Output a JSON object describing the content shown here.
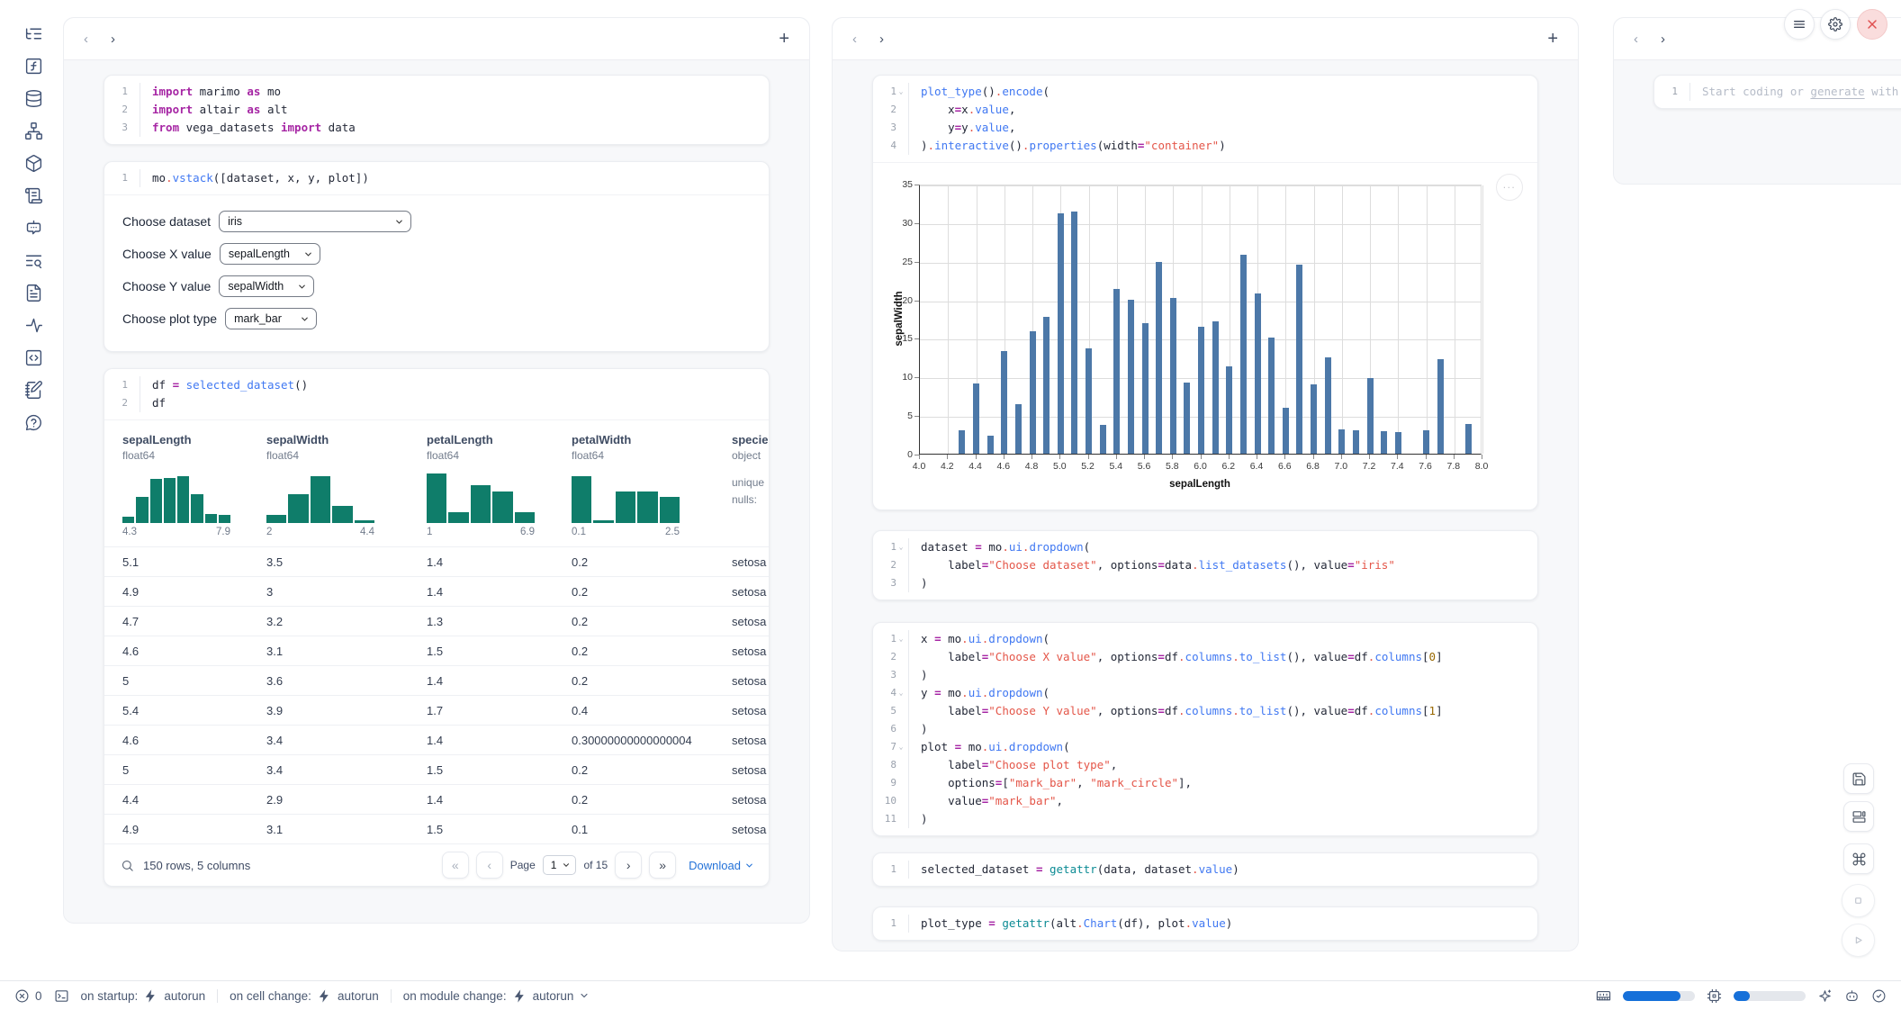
{
  "left_rail": {
    "icons": [
      "file-tree-icon",
      "function-square-icon",
      "database-icon",
      "dependency-graph-icon",
      "package-icon",
      "scroll-log-icon",
      "bot-chat-icon",
      "list-search-icon",
      "document-icon",
      "activity-icon",
      "code-snippet-icon",
      "scratchpad-icon",
      "help-icon"
    ]
  },
  "code": {
    "import_cell": {
      "lines": [
        {
          "n": "1",
          "t": [
            [
              "kw",
              "import"
            ],
            [
              "pl",
              " marimo "
            ],
            [
              "kw",
              "as"
            ],
            [
              "pl",
              " mo"
            ]
          ]
        },
        {
          "n": "2",
          "t": [
            [
              "kw",
              "import"
            ],
            [
              "pl",
              " altair "
            ],
            [
              "kw",
              "as"
            ],
            [
              "pl",
              " alt"
            ]
          ]
        },
        {
          "n": "3",
          "t": [
            [
              "kw",
              "from"
            ],
            [
              "pl",
              " vega_datasets "
            ],
            [
              "kw",
              "import"
            ],
            [
              "pl",
              " data"
            ]
          ]
        }
      ]
    },
    "vstack_cell": {
      "lines": [
        {
          "n": "1",
          "t": [
            [
              "pl",
              "mo"
            ],
            [
              "dot",
              "."
            ],
            [
              "fn",
              "vstack"
            ],
            [
              "pl",
              "([dataset, x, y, plot])"
            ]
          ]
        }
      ]
    },
    "df_cell": {
      "lines": [
        {
          "n": "1",
          "t": [
            [
              "pl",
              "df "
            ],
            [
              "op",
              "="
            ],
            [
              "pl",
              " "
            ],
            [
              "fn",
              "selected_dataset"
            ],
            [
              "pl",
              "()"
            ]
          ]
        },
        {
          "n": "2",
          "t": [
            [
              "pl",
              "df"
            ]
          ]
        }
      ]
    },
    "plot_cell": {
      "lines": [
        {
          "n": "1",
          "fold": true,
          "t": [
            [
              "fn",
              "plot_type"
            ],
            [
              "pl",
              "()"
            ],
            [
              "dot",
              "."
            ],
            [
              "fn",
              "encode"
            ],
            [
              "pl",
              "("
            ]
          ]
        },
        {
          "n": "2",
          "t": [
            [
              "pl",
              "    x"
            ],
            [
              "op",
              "="
            ],
            [
              "pl",
              "x"
            ],
            [
              "dot",
              "."
            ],
            [
              "fn",
              "value"
            ],
            [
              "pl",
              ","
            ]
          ]
        },
        {
          "n": "3",
          "t": [
            [
              "pl",
              "    y"
            ],
            [
              "op",
              "="
            ],
            [
              "pl",
              "y"
            ],
            [
              "dot",
              "."
            ],
            [
              "fn",
              "value"
            ],
            [
              "pl",
              ","
            ]
          ]
        },
        {
          "n": "4",
          "t": [
            [
              "pl",
              ")"
            ],
            [
              "dot",
              "."
            ],
            [
              "fn",
              "interactive"
            ],
            [
              "pl",
              "()"
            ],
            [
              "dot",
              "."
            ],
            [
              "fn",
              "properties"
            ],
            [
              "pl",
              "(width"
            ],
            [
              "op",
              "="
            ],
            [
              "str",
              "\"container\""
            ],
            [
              "pl",
              ")"
            ]
          ]
        }
      ]
    },
    "dataset_cell": {
      "lines": [
        {
          "n": "1",
          "fold": true,
          "t": [
            [
              "pl",
              "dataset "
            ],
            [
              "op",
              "="
            ],
            [
              "pl",
              " mo"
            ],
            [
              "dot",
              "."
            ],
            [
              "fn",
              "ui"
            ],
            [
              "dot",
              "."
            ],
            [
              "fn",
              "dropdown"
            ],
            [
              "pl",
              "("
            ]
          ]
        },
        {
          "n": "2",
          "t": [
            [
              "pl",
              "    label"
            ],
            [
              "op",
              "="
            ],
            [
              "str",
              "\"Choose dataset\""
            ],
            [
              "pl",
              ", options"
            ],
            [
              "op",
              "="
            ],
            [
              "pl",
              "data"
            ],
            [
              "dot",
              "."
            ],
            [
              "fn",
              "list_datasets"
            ],
            [
              "pl",
              "(), value"
            ],
            [
              "op",
              "="
            ],
            [
              "str",
              "\"iris\""
            ]
          ]
        },
        {
          "n": "3",
          "t": [
            [
              "pl",
              ")"
            ]
          ]
        }
      ]
    },
    "xyplot_cell": {
      "lines": [
        {
          "n": "1",
          "fold": true,
          "t": [
            [
              "pl",
              "x "
            ],
            [
              "op",
              "="
            ],
            [
              "pl",
              " mo"
            ],
            [
              "dot",
              "."
            ],
            [
              "fn",
              "ui"
            ],
            [
              "dot",
              "."
            ],
            [
              "fn",
              "dropdown"
            ],
            [
              "pl",
              "("
            ]
          ]
        },
        {
          "n": "2",
          "t": [
            [
              "pl",
              "    label"
            ],
            [
              "op",
              "="
            ],
            [
              "str",
              "\"Choose X value\""
            ],
            [
              "pl",
              ", options"
            ],
            [
              "op",
              "="
            ],
            [
              "pl",
              "df"
            ],
            [
              "dot",
              "."
            ],
            [
              "fn",
              "columns"
            ],
            [
              "dot",
              "."
            ],
            [
              "fn",
              "to_list"
            ],
            [
              "pl",
              "(), value"
            ],
            [
              "op",
              "="
            ],
            [
              "pl",
              "df"
            ],
            [
              "dot",
              "."
            ],
            [
              "fn",
              "columns"
            ],
            [
              "pl",
              "["
            ],
            [
              "num",
              "0"
            ],
            [
              "pl",
              "]"
            ]
          ]
        },
        {
          "n": "3",
          "t": [
            [
              "pl",
              ")"
            ]
          ]
        },
        {
          "n": "4",
          "fold": true,
          "t": [
            [
              "pl",
              "y "
            ],
            [
              "op",
              "="
            ],
            [
              "pl",
              " mo"
            ],
            [
              "dot",
              "."
            ],
            [
              "fn",
              "ui"
            ],
            [
              "dot",
              "."
            ],
            [
              "fn",
              "dropdown"
            ],
            [
              "pl",
              "("
            ]
          ]
        },
        {
          "n": "5",
          "t": [
            [
              "pl",
              "    label"
            ],
            [
              "op",
              "="
            ],
            [
              "str",
              "\"Choose Y value\""
            ],
            [
              "pl",
              ", options"
            ],
            [
              "op",
              "="
            ],
            [
              "pl",
              "df"
            ],
            [
              "dot",
              "."
            ],
            [
              "fn",
              "columns"
            ],
            [
              "dot",
              "."
            ],
            [
              "fn",
              "to_list"
            ],
            [
              "pl",
              "(), value"
            ],
            [
              "op",
              "="
            ],
            [
              "pl",
              "df"
            ],
            [
              "dot",
              "."
            ],
            [
              "fn",
              "columns"
            ],
            [
              "pl",
              "["
            ],
            [
              "num",
              "1"
            ],
            [
              "pl",
              "]"
            ]
          ]
        },
        {
          "n": "6",
          "t": [
            [
              "pl",
              ")"
            ]
          ]
        },
        {
          "n": "7",
          "fold": true,
          "t": [
            [
              "pl",
              "plot "
            ],
            [
              "op",
              "="
            ],
            [
              "pl",
              " mo"
            ],
            [
              "dot",
              "."
            ],
            [
              "fn",
              "ui"
            ],
            [
              "dot",
              "."
            ],
            [
              "fn",
              "dropdown"
            ],
            [
              "pl",
              "("
            ]
          ]
        },
        {
          "n": "8",
          "t": [
            [
              "pl",
              "    label"
            ],
            [
              "op",
              "="
            ],
            [
              "str",
              "\"Choose plot type\""
            ],
            [
              "pl",
              ","
            ]
          ]
        },
        {
          "n": "9",
          "t": [
            [
              "pl",
              "    options"
            ],
            [
              "op",
              "="
            ],
            [
              "pl",
              "["
            ],
            [
              "str",
              "\"mark_bar\""
            ],
            [
              "pl",
              ", "
            ],
            [
              "str",
              "\"mark_circle\""
            ],
            [
              "pl",
              "],"
            ]
          ]
        },
        {
          "n": "10",
          "t": [
            [
              "pl",
              "    value"
            ],
            [
              "op",
              "="
            ],
            [
              "str",
              "\"mark_bar\""
            ],
            [
              "pl",
              ","
            ]
          ]
        },
        {
          "n": "11",
          "t": [
            [
              "pl",
              ")"
            ]
          ]
        }
      ]
    },
    "selected_cell": {
      "lines": [
        {
          "n": "1",
          "t": [
            [
              "pl",
              "selected_dataset "
            ],
            [
              "op",
              "="
            ],
            [
              "pl",
              " "
            ],
            [
              "bi",
              "getattr"
            ],
            [
              "pl",
              "(data, dataset"
            ],
            [
              "dot",
              "."
            ],
            [
              "fn",
              "value"
            ],
            [
              "pl",
              ")"
            ]
          ]
        }
      ]
    },
    "plottype_cell": {
      "lines": [
        {
          "n": "1",
          "t": [
            [
              "pl",
              "plot_type "
            ],
            [
              "op",
              "="
            ],
            [
              "pl",
              " "
            ],
            [
              "bi",
              "getattr"
            ],
            [
              "pl",
              "(alt"
            ],
            [
              "dot",
              "."
            ],
            [
              "fn",
              "Chart"
            ],
            [
              "pl",
              "(df), plot"
            ],
            [
              "dot",
              "."
            ],
            [
              "fn",
              "value"
            ],
            [
              "pl",
              ")"
            ]
          ]
        }
      ]
    }
  },
  "controls": [
    {
      "label": "Choose dataset",
      "value": "iris"
    },
    {
      "label": "Choose X value",
      "value": "sepalLength"
    },
    {
      "label": "Choose Y value",
      "value": "sepalWidth"
    },
    {
      "label": "Choose plot type",
      "value": "mark_bar"
    }
  ],
  "table": {
    "columns": [
      {
        "name": "sepalLength",
        "dtype": "float64",
        "hist": {
          "bars": [
            0.12,
            0.5,
            0.85,
            0.87,
            0.9,
            0.55,
            0.18,
            0.15
          ],
          "min": "4.3",
          "max": "7.9"
        }
      },
      {
        "name": "sepalWidth",
        "dtype": "float64",
        "hist": {
          "bars": [
            0.15,
            0.55,
            0.9,
            0.32,
            0.06
          ],
          "min": "2",
          "max": "4.4"
        }
      },
      {
        "name": "petalLength",
        "dtype": "float64",
        "hist": {
          "bars": [
            0.95,
            0.2,
            0.73,
            0.6,
            0.2
          ],
          "min": "1",
          "max": "6.9"
        }
      },
      {
        "name": "petalWidth",
        "dtype": "float64",
        "hist": {
          "bars": [
            0.9,
            0.06,
            0.6,
            0.6,
            0.5
          ],
          "min": "0.1",
          "max": "2.5"
        }
      },
      {
        "name": "species",
        "dtype": "object",
        "stats": [
          "unique",
          "nulls:"
        ]
      }
    ],
    "rows": [
      [
        "5.1",
        "3.5",
        "1.4",
        "0.2",
        "setosa"
      ],
      [
        "4.9",
        "3",
        "1.4",
        "0.2",
        "setosa"
      ],
      [
        "4.7",
        "3.2",
        "1.3",
        "0.2",
        "setosa"
      ],
      [
        "4.6",
        "3.1",
        "1.5",
        "0.2",
        "setosa"
      ],
      [
        "5",
        "3.6",
        "1.4",
        "0.2",
        "setosa"
      ],
      [
        "5.4",
        "3.9",
        "1.7",
        "0.4",
        "setosa"
      ],
      [
        "4.6",
        "3.4",
        "1.4",
        "0.30000000000000004",
        "setosa"
      ],
      [
        "5",
        "3.4",
        "1.5",
        "0.2",
        "setosa"
      ],
      [
        "4.4",
        "2.9",
        "1.4",
        "0.2",
        "setosa"
      ],
      [
        "4.9",
        "3.1",
        "1.5",
        "0.1",
        "setosa"
      ]
    ],
    "footer": {
      "summary": "150 rows, 5 columns",
      "page_label": "Page",
      "page_value": "1",
      "of_label": "of 15",
      "download_label": "Download"
    }
  },
  "chart_data": {
    "type": "bar",
    "title": "",
    "xlabel": "sepalLength",
    "ylabel": "sepalWidth",
    "xlim": [
      4.0,
      8.0
    ],
    "ylim": [
      0,
      35
    ],
    "grid": true,
    "bar_color": "#4c78a8",
    "x_ticks": [
      "4.0",
      "4.2",
      "4.4",
      "4.6",
      "4.8",
      "5.0",
      "5.2",
      "5.4",
      "5.6",
      "5.8",
      "6.0",
      "6.2",
      "6.4",
      "6.6",
      "6.8",
      "7.0",
      "7.2",
      "7.4",
      "7.6",
      "7.8",
      "8.0"
    ],
    "y_ticks": [
      0,
      5,
      10,
      15,
      20,
      25,
      30,
      35
    ],
    "points": [
      [
        4.3,
        3.0
      ],
      [
        4.4,
        9.1
      ],
      [
        4.5,
        2.3
      ],
      [
        4.6,
        13.3
      ],
      [
        4.7,
        6.4
      ],
      [
        4.8,
        15.9
      ],
      [
        4.9,
        17.7
      ],
      [
        5.0,
        31.2
      ],
      [
        5.1,
        31.4
      ],
      [
        5.2,
        13.7
      ],
      [
        5.3,
        3.7
      ],
      [
        5.4,
        21.4
      ],
      [
        5.5,
        20.0
      ],
      [
        5.6,
        16.9
      ],
      [
        5.7,
        24.9
      ],
      [
        5.8,
        20.2
      ],
      [
        5.9,
        9.2
      ],
      [
        6.0,
        16.4
      ],
      [
        6.1,
        17.1
      ],
      [
        6.2,
        11.3
      ],
      [
        6.3,
        25.8
      ],
      [
        6.4,
        20.8
      ],
      [
        6.5,
        15.0
      ],
      [
        6.6,
        6.0
      ],
      [
        6.7,
        24.5
      ],
      [
        6.8,
        9.0
      ],
      [
        6.9,
        12.5
      ],
      [
        7.0,
        3.2
      ],
      [
        7.1,
        3.0
      ],
      [
        7.2,
        9.8
      ],
      [
        7.3,
        2.9
      ],
      [
        7.4,
        2.8
      ],
      [
        7.6,
        3.0
      ],
      [
        7.7,
        12.2
      ],
      [
        7.9,
        3.8
      ]
    ]
  },
  "ai_panel": {
    "line_no": "1",
    "ph_before": "Start coding or ",
    "ph_link": "generate",
    "ph_after": " with AI"
  },
  "statusbar": {
    "error_count": "0",
    "items": [
      {
        "label": "on startup:",
        "value": "autorun",
        "chevron": false
      },
      {
        "label": "on cell change:",
        "value": "autorun",
        "chevron": false
      },
      {
        "label": "on module change:",
        "value": "autorun",
        "chevron": true
      }
    ],
    "ram_pct": 80,
    "cpu_pct": 22
  }
}
